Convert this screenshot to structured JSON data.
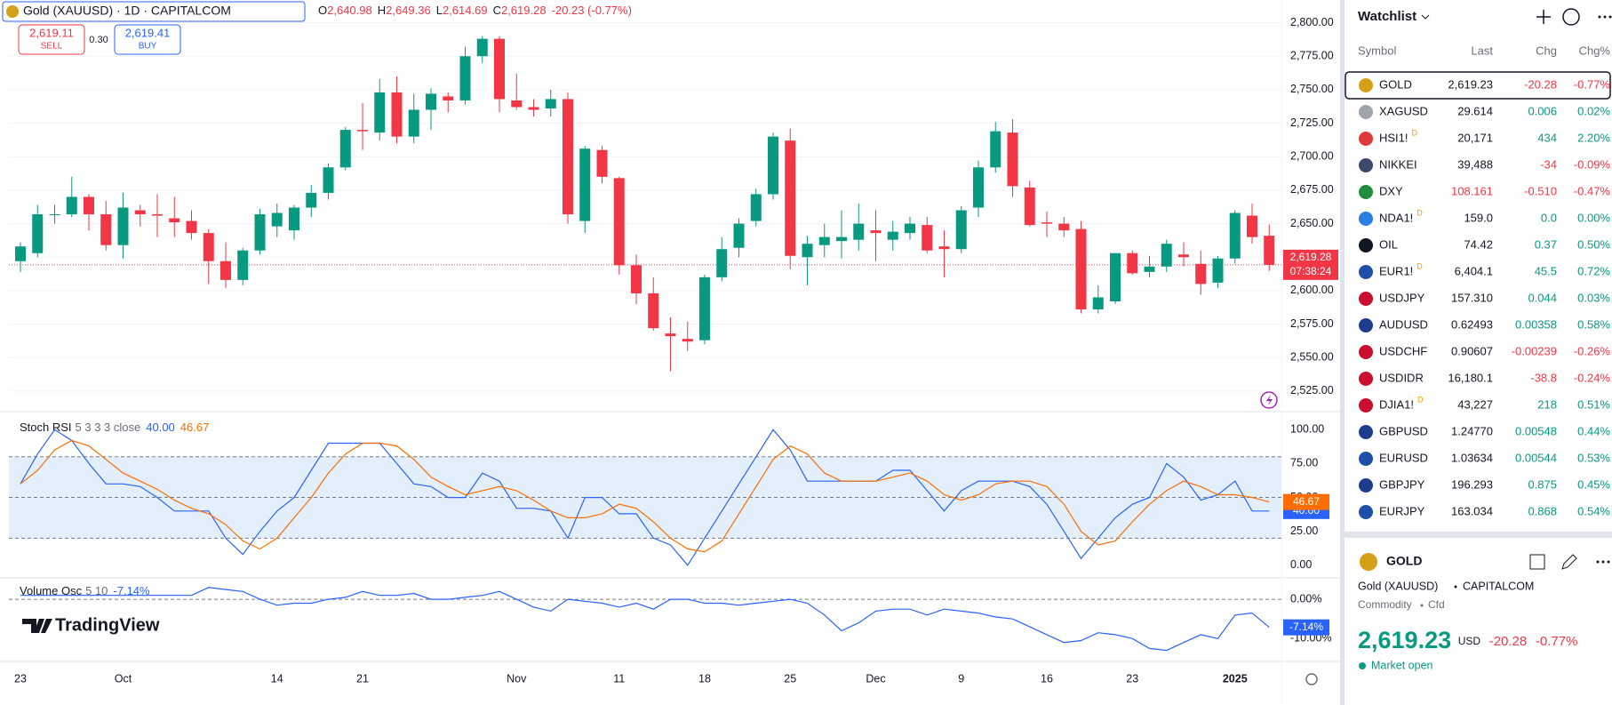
{
  "header": {
    "symbol": "Gold (XAUUSD) · 1D · CAPITALCOM",
    "ohlc": [
      {
        "label": "O",
        "value": "2,640.98"
      },
      {
        "label": "H",
        "value": "2,649.36"
      },
      {
        "label": "L",
        "value": "2,614.69"
      },
      {
        "label": "C",
        "value": "2,619.28"
      }
    ],
    "change": "-20.23 (-0.77%)"
  },
  "trade": {
    "sell_price": "2,619.11",
    "sell": "SELL",
    "spread": "0.30",
    "buy_price": "2,619.41",
    "buy": "BUY"
  },
  "brand": "TradingView",
  "chart_data": [
    {
      "type": "candlestick",
      "up_color": "#089981",
      "down_color": "#f23645",
      "categories": [
        "23",
        null,
        null,
        null,
        null,
        null,
        "Oct",
        null,
        null,
        null,
        null,
        null,
        null,
        null,
        null,
        "14",
        null,
        null,
        null,
        null,
        "21",
        null,
        null,
        null,
        null,
        null,
        null,
        null,
        null,
        "Nov",
        null,
        null,
        null,
        null,
        null,
        "11",
        null,
        null,
        null,
        null,
        "18",
        null,
        null,
        null,
        null,
        "25",
        null,
        null,
        null,
        null,
        "Dec",
        null,
        null,
        null,
        null,
        "9",
        null,
        null,
        null,
        null,
        "16",
        null,
        null,
        null,
        null,
        "23",
        null,
        null,
        null,
        null,
        null,
        "2025",
        null,
        null
      ],
      "candles": [
        [
          2622,
          2636,
          2614,
          2633
        ],
        [
          2628,
          2664,
          2625,
          2657
        ],
        [
          2657,
          2664,
          2650,
          2657
        ],
        [
          2657,
          2685,
          2655,
          2670
        ],
        [
          2670,
          2672,
          2645,
          2657
        ],
        [
          2657,
          2667,
          2630,
          2634
        ],
        [
          2634,
          2673,
          2624,
          2662
        ],
        [
          2660,
          2664,
          2648,
          2657
        ],
        [
          2657,
          2672,
          2640,
          2656
        ],
        [
          2654,
          2670,
          2640,
          2651
        ],
        [
          2652,
          2660,
          2638,
          2643
        ],
        [
          2643,
          2646,
          2605,
          2622
        ],
        [
          2622,
          2636,
          2602,
          2608
        ],
        [
          2608,
          2632,
          2604,
          2630
        ],
        [
          2630,
          2661,
          2627,
          2657
        ],
        [
          2648,
          2665,
          2640,
          2658
        ],
        [
          2645,
          2664,
          2638,
          2662
        ],
        [
          2662,
          2679,
          2655,
          2673
        ],
        [
          2673,
          2695,
          2668,
          2692
        ],
        [
          2692,
          2722,
          2690,
          2720
        ],
        [
          2720,
          2740,
          2705,
          2719
        ],
        [
          2718,
          2758,
          2712,
          2748
        ],
        [
          2748,
          2760,
          2710,
          2715
        ],
        [
          2715,
          2747,
          2710,
          2735
        ],
        [
          2735,
          2751,
          2720,
          2747
        ],
        [
          2745,
          2748,
          2733,
          2742
        ],
        [
          2742,
          2782,
          2739,
          2775
        ],
        [
          2775,
          2790,
          2770,
          2788
        ],
        [
          2788,
          2790,
          2733,
          2743
        ],
        [
          2742,
          2762,
          2735,
          2737
        ],
        [
          2737,
          2743,
          2730,
          2735
        ],
        [
          2736,
          2750,
          2730,
          2743
        ],
        [
          2743,
          2748,
          2650,
          2657
        ],
        [
          2652,
          2708,
          2643,
          2706
        ],
        [
          2705,
          2708,
          2680,
          2685
        ],
        [
          2684,
          2685,
          2612,
          2619
        ],
        [
          2619,
          2627,
          2590,
          2598
        ],
        [
          2598,
          2610,
          2570,
          2572
        ],
        [
          2568,
          2580,
          2540,
          2566
        ],
        [
          2564,
          2577,
          2555,
          2562
        ],
        [
          2563,
          2612,
          2560,
          2610
        ],
        [
          2610,
          2640,
          2607,
          2631
        ],
        [
          2632,
          2654,
          2625,
          2650
        ],
        [
          2652,
          2676,
          2648,
          2672
        ],
        [
          2672,
          2718,
          2668,
          2715
        ],
        [
          2712,
          2721,
          2616,
          2626
        ],
        [
          2625,
          2641,
          2604,
          2635
        ],
        [
          2634,
          2650,
          2625,
          2640
        ],
        [
          2637,
          2660,
          2624,
          2640
        ],
        [
          2638,
          2665,
          2630,
          2650
        ],
        [
          2645,
          2660,
          2622,
          2643
        ],
        [
          2638,
          2652,
          2630,
          2644
        ],
        [
          2643,
          2655,
          2638,
          2650
        ],
        [
          2649,
          2655,
          2628,
          2630
        ],
        [
          2633,
          2645,
          2610,
          2631
        ],
        [
          2631,
          2663,
          2628,
          2660
        ],
        [
          2662,
          2697,
          2655,
          2692
        ],
        [
          2692,
          2726,
          2688,
          2719
        ],
        [
          2718,
          2728,
          2670,
          2678
        ],
        [
          2677,
          2682,
          2648,
          2649
        ],
        [
          2651,
          2659,
          2640,
          2650
        ],
        [
          2650,
          2655,
          2640,
          2645
        ],
        [
          2646,
          2652,
          2583,
          2586
        ],
        [
          2586,
          2604,
          2583,
          2595
        ],
        [
          2592,
          2628,
          2590,
          2628
        ],
        [
          2628,
          2630,
          2612,
          2613
        ],
        [
          2614,
          2626,
          2610,
          2618
        ],
        [
          2618,
          2638,
          2614,
          2635
        ],
        [
          2627,
          2636,
          2618,
          2625
        ],
        [
          2620,
          2630,
          2597,
          2605
        ],
        [
          2606,
          2626,
          2602,
          2624
        ],
        [
          2624,
          2660,
          2620,
          2658
        ],
        [
          2656,
          2665,
          2635,
          2640
        ],
        [
          2640.98,
          2649.36,
          2614.69,
          2619.28
        ]
      ],
      "ylim": [
        2515,
        2809
      ],
      "yticks": [
        {
          "value": 2525,
          "label": "2,525.00"
        },
        {
          "value": 2550,
          "label": "2,550.00"
        },
        {
          "value": 2575,
          "label": "2,575.00"
        },
        {
          "value": 2600,
          "label": "2,600.00"
        },
        {
          "value": 2625,
          "label": "2,625.00"
        },
        {
          "value": 2650,
          "label": "2,650.00"
        },
        {
          "value": 2675,
          "label": "2,675.00"
        },
        {
          "value": 2700,
          "label": "2,700.00"
        },
        {
          "value": 2725,
          "label": "2,725.00"
        },
        {
          "value": 2750,
          "label": "2,750.00"
        },
        {
          "value": 2775,
          "label": "2,775.00"
        },
        {
          "value": 2800,
          "label": "2,800.00"
        }
      ],
      "grid": true,
      "last_price": 2619.28,
      "last_label": "2,619.28",
      "countdown": "07:38:24"
    },
    {
      "type": "line",
      "title": "Stoch RSI",
      "params": "5 3 3 3 close",
      "series": [
        {
          "color": "#2962ff",
          "last_label": "40.00",
          "values": [
            60,
            82,
            100,
            92,
            75,
            60,
            60,
            58,
            50,
            40,
            40,
            40,
            20,
            8,
            25,
            40,
            50,
            70,
            90,
            90,
            90,
            90,
            75,
            60,
            58,
            50,
            50,
            68,
            62,
            42,
            42,
            40,
            20,
            50,
            50,
            38,
            38,
            20,
            15,
            0,
            20,
            40,
            60,
            80,
            100,
            85,
            62,
            62,
            62,
            62,
            62,
            70,
            70,
            55,
            40,
            55,
            62,
            62,
            62,
            58,
            45,
            25,
            5,
            20,
            35,
            45,
            50,
            75,
            65,
            48,
            52,
            62,
            40,
            40
          ]
        },
        {
          "color": "#ff6d00",
          "last_label": "46.67",
          "values": [
            60,
            70,
            85,
            92,
            88,
            78,
            68,
            62,
            56,
            48,
            42,
            38,
            30,
            18,
            12,
            20,
            35,
            50,
            68,
            82,
            90,
            90,
            88,
            78,
            65,
            58,
            52,
            55,
            58,
            55,
            48,
            40,
            35,
            35,
            38,
            45,
            42,
            32,
            20,
            12,
            10,
            18,
            38,
            58,
            78,
            88,
            82,
            68,
            62,
            62,
            62,
            65,
            68,
            62,
            52,
            48,
            52,
            60,
            62,
            62,
            58,
            45,
            25,
            15,
            18,
            32,
            45,
            55,
            62,
            58,
            52,
            52,
            50,
            46.67
          ]
        }
      ],
      "ylim": [
        -6,
        110
      ],
      "yticks": [
        {
          "value": 0,
          "label": "0.00"
        },
        {
          "value": 25,
          "label": "25.00"
        },
        {
          "value": 50,
          "label": "50.00"
        },
        {
          "value": 75,
          "label": "75.00"
        },
        {
          "value": 100,
          "label": "100.00"
        }
      ],
      "band": [
        20,
        80
      ],
      "band_color": "#e3effd",
      "levels": [
        20,
        50,
        80
      ]
    },
    {
      "type": "line",
      "title": "Volume Osc",
      "params": "5 10",
      "series": [
        {
          "color": "#2962ff",
          "last_label": "-7.14%",
          "values": [
            1,
            1,
            1,
            1,
            1,
            1,
            1,
            1,
            1,
            1,
            1,
            3,
            2.5,
            2,
            0,
            -1.5,
            -1,
            -1,
            0,
            0.5,
            2,
            1,
            1,
            1.5,
            0,
            0,
            0.5,
            1,
            2,
            0,
            -2,
            -3,
            0,
            -0.5,
            -1,
            -2,
            -1,
            -2.5,
            0,
            0,
            -1,
            -1,
            -1.5,
            -1,
            -0.5,
            0,
            -1,
            -4,
            -8,
            -6,
            -3,
            -2.5,
            -2.5,
            -4,
            -2.5,
            -3,
            -3.5,
            -4.5,
            -5,
            -7,
            -9,
            -11,
            -10.5,
            -8.5,
            -9,
            -10,
            -12.5,
            -13,
            -11,
            -9,
            -10,
            -4,
            -3.5,
            -7.14
          ]
        }
      ],
      "ylim": [
        -14,
        5
      ],
      "yticks": [
        {
          "value": 0,
          "label": "0.00%"
        },
        {
          "value": -10,
          "label": "-10.00%"
        }
      ],
      "levels": [
        0
      ]
    }
  ],
  "watchlist": {
    "title": "Watchlist",
    "columns": [
      "Symbol",
      "Last",
      "Chg",
      "Chg%"
    ],
    "rows": [
      {
        "symbol": "GOLD",
        "last": "2,619.23",
        "chg": "-20.28",
        "chg_pct": "-0.77%",
        "icon_color": "#d4a017"
      },
      {
        "symbol": "XAGUSD",
        "last": "29.614",
        "chg": "0.006",
        "chg_pct": "0.02%",
        "icon_color": "#a0a4ad"
      },
      {
        "symbol": "HSI1!",
        "badge": "D",
        "last": "20,171",
        "chg": "434",
        "chg_pct": "2.20%",
        "icon_color": "#e0393e"
      },
      {
        "symbol": "NIKKEI",
        "last": "39,488",
        "chg": "-34",
        "chg_pct": "-0.09%",
        "icon_color": "#3d4a6b"
      },
      {
        "symbol": "DXY",
        "last": "108.161",
        "last_color": "#f23645",
        "chg": "-0.510",
        "chg_pct": "-0.47%",
        "icon_color": "#1e8e3e"
      },
      {
        "symbol": "NDA1!",
        "badge": "D",
        "last": "159.0",
        "chg": "0.0",
        "chg_pct": "0.00%",
        "icon_color": "#2a7de1"
      },
      {
        "symbol": "OIL",
        "last": "74.42",
        "chg": "0.37",
        "chg_pct": "0.50%",
        "icon_color": "#131722"
      },
      {
        "symbol": "EUR1!",
        "badge": "D",
        "last": "6,404.1",
        "chg": "45.5",
        "chg_pct": "0.72%",
        "icon_color": "#1f4fa8"
      },
      {
        "symbol": "USDJPY",
        "last": "157.310",
        "chg": "0.044",
        "chg_pct": "0.03%",
        "icon_color": "#c8102e"
      },
      {
        "symbol": "AUDUSD",
        "last": "0.62493",
        "chg": "0.00358",
        "chg_pct": "0.58%",
        "icon_color": "#1d3c8f"
      },
      {
        "symbol": "USDCHF",
        "last": "0.90607",
        "chg": "-0.00239",
        "chg_pct": "-0.26%",
        "icon_color": "#c8102e"
      },
      {
        "symbol": "USDIDR",
        "last": "16,180.1",
        "chg": "-38.8",
        "chg_pct": "-0.24%",
        "icon_color": "#c8102e"
      },
      {
        "symbol": "DJIA1!",
        "badge": "D",
        "last": "43,227",
        "chg": "218",
        "chg_pct": "0.51%",
        "icon_color": "#c8102e"
      },
      {
        "symbol": "GBPUSD",
        "last": "1.24770",
        "chg": "0.00548",
        "chg_pct": "0.44%",
        "icon_color": "#1d3c8f"
      },
      {
        "symbol": "EURUSD",
        "last": "1.03634",
        "chg": "0.00544",
        "chg_pct": "0.53%",
        "icon_color": "#1f4fa8"
      },
      {
        "symbol": "GBPJPY",
        "last": "196.293",
        "chg": "0.875",
        "chg_pct": "0.45%",
        "icon_color": "#1d3c8f"
      },
      {
        "symbol": "EURJPY",
        "last": "163.034",
        "chg": "0.868",
        "chg_pct": "0.54%",
        "icon_color": "#1f4fa8"
      }
    ]
  },
  "details": {
    "symbol": "GOLD",
    "name": "Gold (XAUUSD)",
    "exchange": "CAPITALCOM",
    "category": "Commodity",
    "kind": "Cfd",
    "price": "2,619.23",
    "currency": "USD",
    "chg": "-20.28",
    "chg_pct": "-0.77%",
    "status": "Market open"
  }
}
